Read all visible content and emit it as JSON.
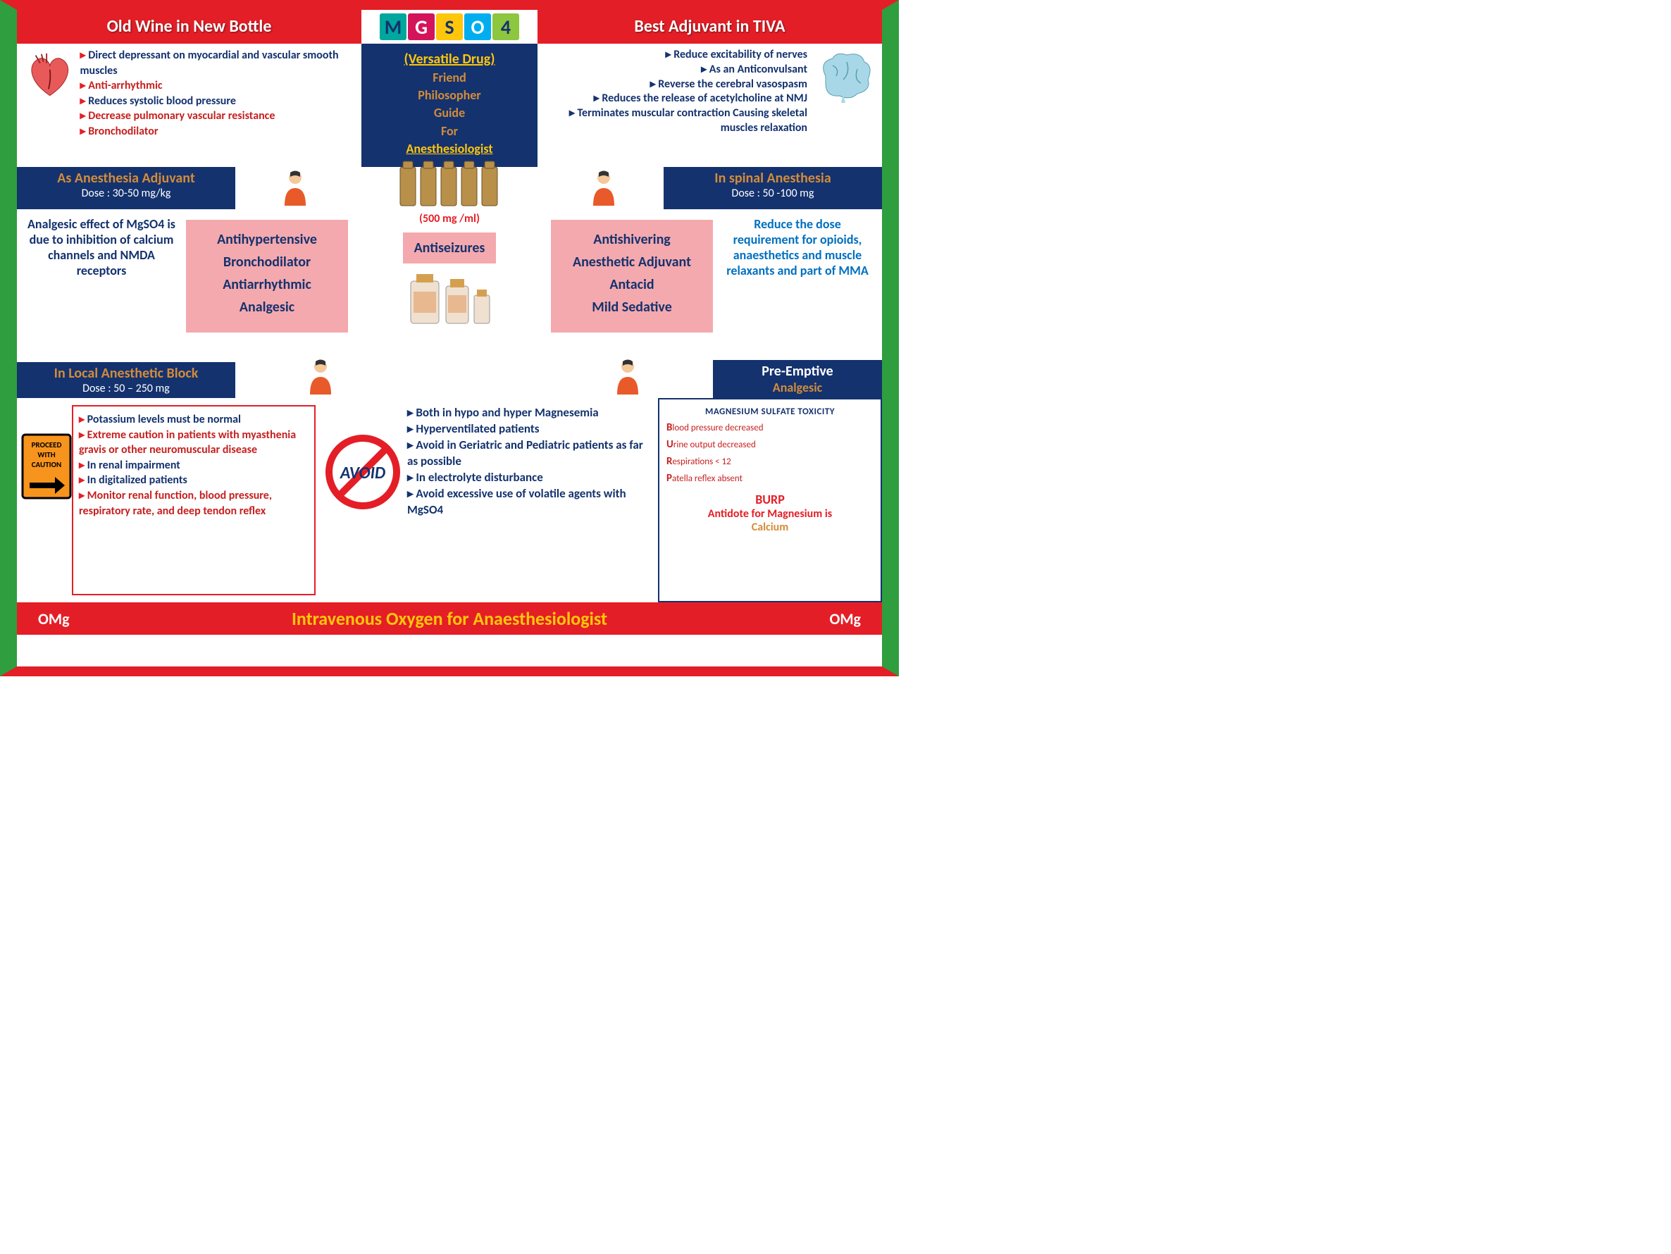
{
  "header": {
    "left_title": "Old Wine in New Bottle",
    "right_title": "Best Adjuvant in TIVA",
    "formula": [
      "M",
      "G",
      "S",
      "O",
      "4"
    ]
  },
  "colors": {
    "frame_red": "#e41e26",
    "frame_green": "#2e9e3f",
    "navy": "#14326e",
    "pink": "#f4a9ae",
    "gold": "#ffc60b",
    "orange": "#d28c3a",
    "blue": "#0070c0"
  },
  "top_center": {
    "versatile": "(Versatile Drug)",
    "lines": [
      "Friend",
      "Philosopher",
      "Guide",
      "For"
    ],
    "anes": "Anesthesiologist"
  },
  "top_left_bullets": [
    {
      "text": "Direct depressant on myocardial and vascular smooth muscles",
      "cls": "navy"
    },
    {
      "text": "Anti-arrhythmic",
      "cls": "red"
    },
    {
      "text": "Reduces systolic blood pressure",
      "cls": "navy"
    },
    {
      "text": "Decrease pulmonary vascular resistance",
      "cls": "red"
    },
    {
      "text": "Bronchodilator",
      "cls": "red"
    }
  ],
  "top_right_bullets": [
    "Reduce excitability of nerves",
    "As an Anticonvulsant",
    "Reverse the cerebral vasospasm",
    "Reduces the release of acetylcholine at NMJ",
    "Terminates muscular contraction Causing skeletal muscles relaxation"
  ],
  "mid_headers": {
    "left_t1": "As Anesthesia Adjuvant",
    "left_t2": "Dose : 30-50 mg/kg",
    "right_t1": "In spinal Anesthesia",
    "right_t2": "Dose :  50 -100 mg"
  },
  "mid_left_text": "Analgesic effect of MgSO4 is due to inhibition of calcium channels   and NMDA receptors",
  "pink_left_lines": [
    "Antihypertensive",
    "Bronchodilator",
    "Antiarrhythmic",
    "Analgesic"
  ],
  "mid_center": {
    "dose500": "(500 mg /ml)",
    "antiseiz": "Antiseizures"
  },
  "pink_right_lines": [
    "Antishivering",
    "Anesthetic Adjuvant",
    "Antacid",
    "Mild Sedative"
  ],
  "mid_right_text": "Reduce the dose requirement for opioids, anaesthetics and muscle relaxants and  part of MMA",
  "lower_headers": {
    "left_t1": "In Local Anesthetic Block",
    "left_t2": "Dose : 50 – 250 mg",
    "right_t1": "Pre-Emptive",
    "right_t2": "Analgesic"
  },
  "caution_bullets": [
    {
      "text": "Potassium levels must be normal",
      "cls": "navy"
    },
    {
      "text": "Extreme caution in patients with myasthenia gravis or other neuromuscular disease",
      "cls": "red"
    },
    {
      "text": "In  renal impairment",
      "cls": "navy"
    },
    {
      "text": "In digitalized patients",
      "cls": "navy"
    },
    {
      "text": "Monitor renal function, blood pressure, respiratory rate, and deep tendon reflex",
      "cls": "red"
    }
  ],
  "avoid_bullets": [
    "Both in hypo and hyper Magnesemia",
    "Hyperventilated patients",
    "Avoid in Geriatric and Pediatric patients as far as possible",
    "In electrolyte disturbance",
    "Avoid excessive use of volatile agents with MgSO4"
  ],
  "toxicity": {
    "title": "MAGNESIUM SULFATE TOXICITY",
    "lines": [
      {
        "b": "B",
        "rest": "lood pressure decreased"
      },
      {
        "b": "U",
        "rest": "rine output decreased"
      },
      {
        "b": "R",
        "rest": "espirations < 12"
      },
      {
        "b": "P",
        "rest": "atella reflex absent"
      }
    ],
    "burp": "BURP",
    "antidote_pre": "Antidote  for Magnesium is",
    "antidote_cal": "Calcium"
  },
  "footer": {
    "omg": "OMg",
    "title": "Intravenous Oxygen for Anaesthesiologist"
  },
  "signs": {
    "caution_l1": "PROCEED",
    "caution_l2": "WITH",
    "caution_l3": "CAUTION",
    "avoid": "AVOID"
  }
}
